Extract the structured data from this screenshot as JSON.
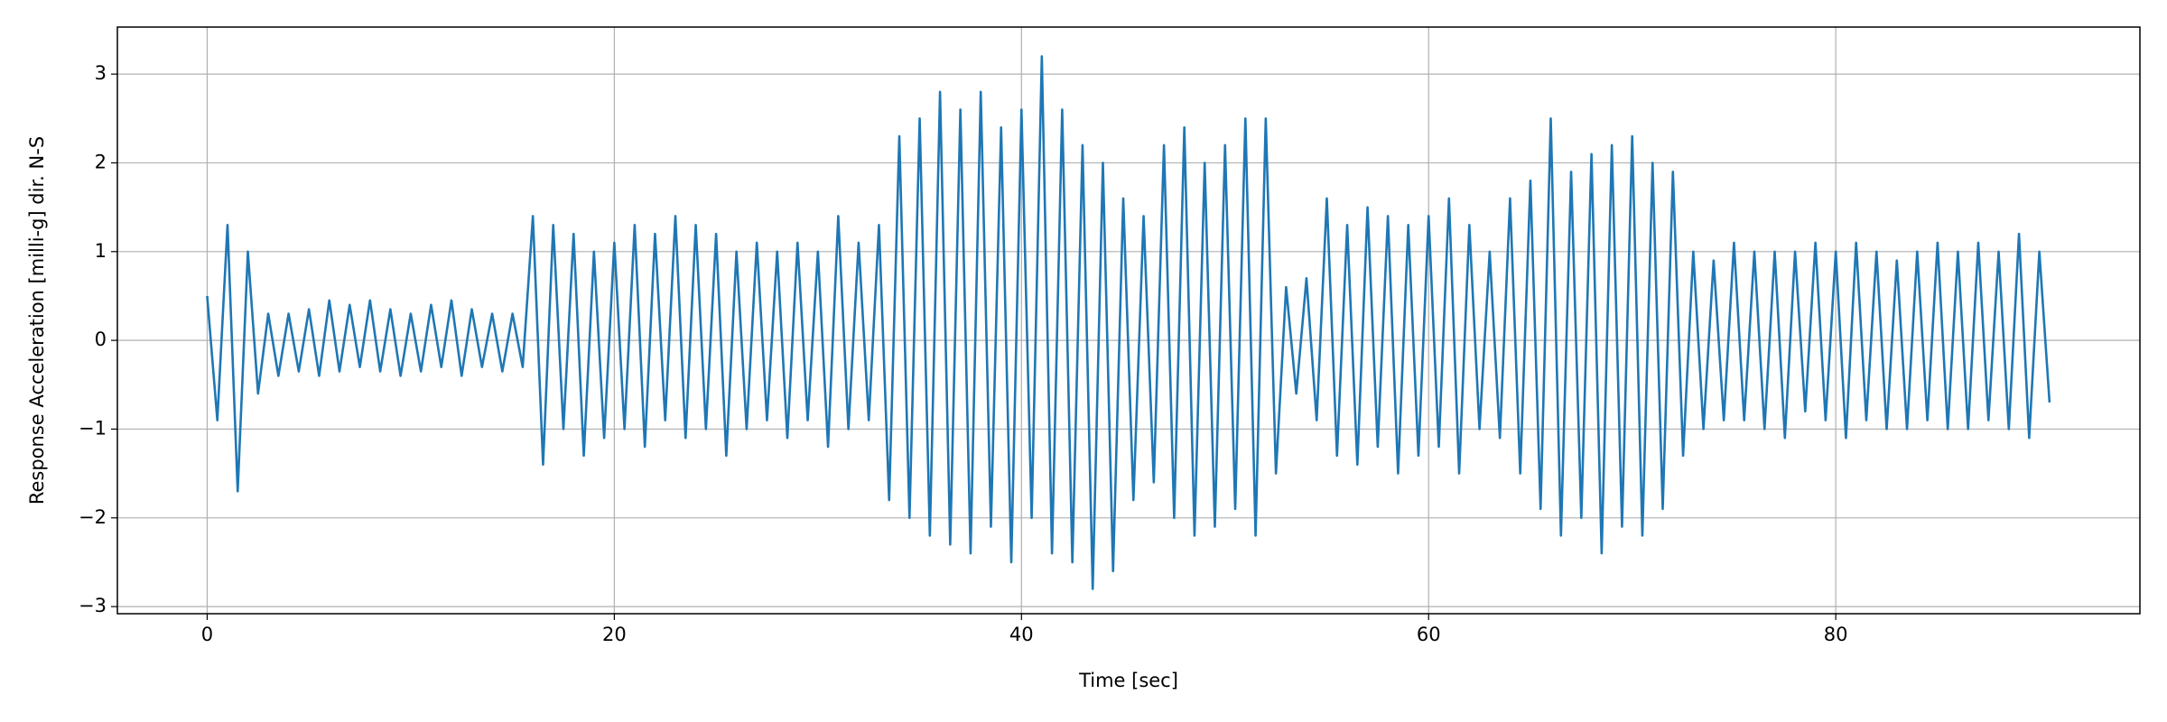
{
  "chart_data": {
    "type": "line",
    "xlabel": "Time [sec]",
    "ylabel": "Response Acceleration [milli-g] dir. N-S",
    "color": "#1f77b4",
    "grid": true,
    "xlim": [
      -4.41,
      94.94
    ],
    "ylim": [
      -3.08,
      3.53
    ],
    "xticks": [
      0,
      20,
      40,
      60,
      80
    ],
    "yticks": [
      {
        "value": -3,
        "label": "−3"
      },
      {
        "value": -2,
        "label": "−2"
      },
      {
        "value": -1,
        "label": "−1"
      },
      0,
      1,
      2,
      3
    ],
    "x": [
      0,
      0.5,
      1,
      1.5,
      2,
      2.5,
      3,
      3.5,
      4,
      4.5,
      5,
      5.5,
      6,
      6.5,
      7,
      7.5,
      8,
      8.5,
      9,
      9.5,
      10,
      10.5,
      11,
      11.5,
      12,
      12.5,
      13,
      13.5,
      14,
      14.5,
      15,
      15.5,
      16,
      16.5,
      17,
      17.5,
      18,
      18.5,
      19,
      19.5,
      20,
      20.5,
      21,
      21.5,
      22,
      22.5,
      23,
      23.5,
      24,
      24.5,
      25,
      25.5,
      26,
      26.5,
      27,
      27.5,
      28,
      28.5,
      29,
      29.5,
      30,
      30.5,
      31,
      31.5,
      32,
      32.5,
      33,
      33.5,
      34,
      34.5,
      35,
      35.5,
      36,
      36.5,
      37,
      37.5,
      38,
      38.5,
      39,
      39.5,
      40,
      40.5,
      41,
      41.5,
      42,
      42.5,
      43,
      43.5,
      44,
      44.5,
      45,
      45.5,
      46,
      46.5,
      47,
      47.5,
      48,
      48.5,
      49,
      49.5,
      50,
      50.5,
      51,
      51.5,
      52,
      52.5,
      53,
      53.5,
      54,
      54.5,
      55,
      55.5,
      56,
      56.5,
      57,
      57.5,
      58,
      58.5,
      59,
      59.5,
      60,
      60.5,
      61,
      61.5,
      62,
      62.5,
      63,
      63.5,
      64,
      64.5,
      65,
      65.5,
      66,
      66.5,
      67,
      67.5,
      68,
      68.5,
      69,
      69.5,
      70,
      70.5,
      71,
      71.5,
      72,
      72.5,
      73,
      73.5,
      74,
      74.5,
      75,
      75.5,
      76,
      76.5,
      77,
      77.5,
      78,
      78.5,
      79,
      79.5,
      80,
      80.5,
      81,
      81.5,
      82,
      82.5,
      83,
      83.5,
      84,
      84.5,
      85,
      85.5,
      86,
      86.5,
      87,
      87.5,
      88,
      88.5,
      89,
      89.5,
      90,
      90.5
    ],
    "values": [
      0.5,
      -0.9,
      1.3,
      -1.7,
      1.0,
      -0.6,
      0.3,
      -0.4,
      0.3,
      -0.35,
      0.35,
      -0.4,
      0.45,
      -0.35,
      0.4,
      -0.3,
      0.45,
      -0.35,
      0.35,
      -0.4,
      0.3,
      -0.35,
      0.4,
      -0.3,
      0.45,
      -0.4,
      0.35,
      -0.3,
      0.3,
      -0.35,
      0.3,
      -0.3,
      1.4,
      -1.4,
      1.3,
      -1.0,
      1.2,
      -1.3,
      1.0,
      -1.1,
      1.1,
      -1.0,
      1.3,
      -1.2,
      1.2,
      -0.9,
      1.4,
      -1.1,
      1.3,
      -1.0,
      1.2,
      -1.3,
      1.0,
      -1.0,
      1.1,
      -0.9,
      1.0,
      -1.1,
      1.1,
      -0.9,
      1.0,
      -1.2,
      1.4,
      -1.0,
      1.1,
      -0.9,
      1.3,
      -1.8,
      2.3,
      -2.0,
      2.5,
      -2.2,
      2.8,
      -2.3,
      2.6,
      -2.4,
      2.8,
      -2.1,
      2.4,
      -2.5,
      2.6,
      -2.0,
      3.2,
      -2.4,
      2.6,
      -2.5,
      2.2,
      -2.8,
      2.0,
      -2.6,
      1.6,
      -1.8,
      1.4,
      -1.6,
      2.2,
      -2.0,
      2.4,
      -2.2,
      2.0,
      -2.1,
      2.2,
      -1.9,
      2.5,
      -2.2,
      2.5,
      -1.5,
      0.6,
      -0.6,
      0.7,
      -0.9,
      1.6,
      -1.3,
      1.3,
      -1.4,
      1.5,
      -1.2,
      1.4,
      -1.5,
      1.3,
      -1.3,
      1.4,
      -1.2,
      1.6,
      -1.5,
      1.3,
      -1.0,
      1.0,
      -1.1,
      1.6,
      -1.5,
      1.8,
      -1.9,
      2.5,
      -2.2,
      1.9,
      -2.0,
      2.1,
      -2.4,
      2.2,
      -2.1,
      2.3,
      -2.2,
      2.0,
      -1.9,
      1.9,
      -1.3,
      1.0,
      -1.0,
      0.9,
      -0.9,
      1.1,
      -0.9,
      1.0,
      -1.0,
      1.0,
      -1.1,
      1.0,
      -0.8,
      1.1,
      -0.9,
      1.0,
      -1.1,
      1.1,
      -0.9,
      1.0,
      -1.0,
      0.9,
      -1.0,
      1.0,
      -0.9,
      1.1,
      -1.0,
      1.0,
      -1.0,
      1.1,
      -0.9,
      1.0,
      -1.0,
      1.2,
      -1.1,
      1.0,
      -0.7
    ]
  }
}
